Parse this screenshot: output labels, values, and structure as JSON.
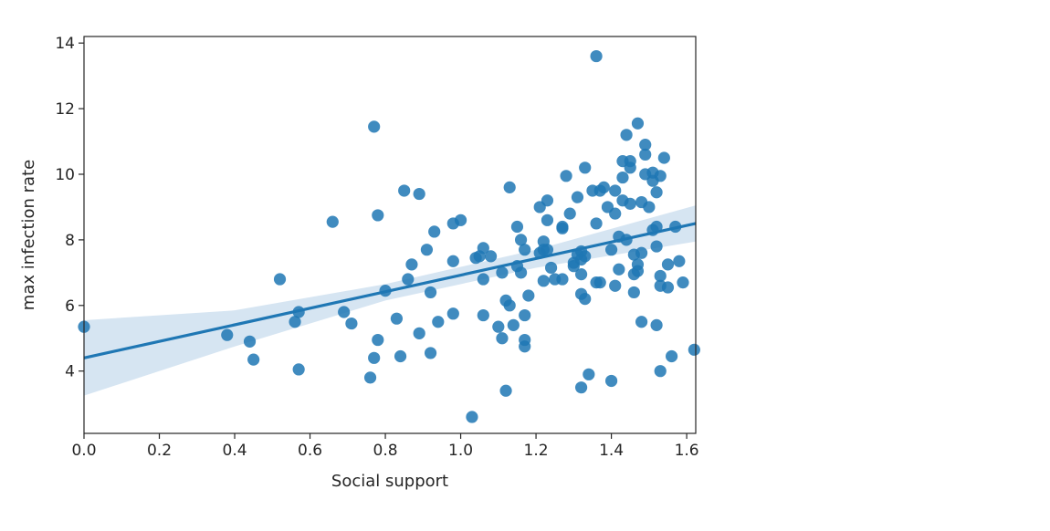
{
  "chart_data": {
    "type": "scatter",
    "xlabel": "Social support",
    "ylabel": "max infection rate",
    "xlim": [
      0.0,
      1.624
    ],
    "ylim": [
      2.1,
      14.2
    ],
    "xticks": [
      "0.0",
      "0.2",
      "0.4",
      "0.6",
      "0.8",
      "1.0",
      "1.2",
      "1.4",
      "1.6"
    ],
    "yticks": [
      "4",
      "6",
      "8",
      "10",
      "12",
      "14"
    ],
    "grid": false,
    "colors": {
      "points": "#1f77b4",
      "line": "#1f77b4",
      "band": "#cfe0f0"
    },
    "regression": {
      "x": [
        0.0,
        1.624
      ],
      "y": [
        4.4,
        8.5
      ]
    },
    "confidence_band": {
      "x": [
        0.0,
        0.4,
        0.8,
        1.2,
        1.624
      ],
      "lower": [
        3.25,
        4.75,
        6.15,
        7.15,
        7.95
      ],
      "upper": [
        5.55,
        5.85,
        6.65,
        7.7,
        9.05
      ]
    },
    "points": [
      [
        0.0,
        5.35
      ],
      [
        0.38,
        5.1
      ],
      [
        0.44,
        4.9
      ],
      [
        0.45,
        4.35
      ],
      [
        0.52,
        6.8
      ],
      [
        0.56,
        5.5
      ],
      [
        0.57,
        5.8
      ],
      [
        0.57,
        4.05
      ],
      [
        0.66,
        8.55
      ],
      [
        0.69,
        5.8
      ],
      [
        0.71,
        5.45
      ],
      [
        0.76,
        3.8
      ],
      [
        0.77,
        11.45
      ],
      [
        0.77,
        4.4
      ],
      [
        0.78,
        4.95
      ],
      [
        0.78,
        8.75
      ],
      [
        0.8,
        6.45
      ],
      [
        0.83,
        5.6
      ],
      [
        0.84,
        4.45
      ],
      [
        0.85,
        9.5
      ],
      [
        0.86,
        6.8
      ],
      [
        0.87,
        7.25
      ],
      [
        0.89,
        5.15
      ],
      [
        0.89,
        9.4
      ],
      [
        0.91,
        7.7
      ],
      [
        0.92,
        6.4
      ],
      [
        0.92,
        4.55
      ],
      [
        0.93,
        8.25
      ],
      [
        0.94,
        5.5
      ],
      [
        0.98,
        8.5
      ],
      [
        0.98,
        7.35
      ],
      [
        0.98,
        5.75
      ],
      [
        1.0,
        8.6
      ],
      [
        1.03,
        2.6
      ],
      [
        1.04,
        7.45
      ],
      [
        1.05,
        7.5
      ],
      [
        1.06,
        7.75
      ],
      [
        1.06,
        5.7
      ],
      [
        1.06,
        6.8
      ],
      [
        1.08,
        7.5
      ],
      [
        1.1,
        5.35
      ],
      [
        1.11,
        5.0
      ],
      [
        1.11,
        7.0
      ],
      [
        1.12,
        6.15
      ],
      [
        1.12,
        3.4
      ],
      [
        1.13,
        9.6
      ],
      [
        1.13,
        6.0
      ],
      [
        1.14,
        5.4
      ],
      [
        1.15,
        8.4
      ],
      [
        1.15,
        7.2
      ],
      [
        1.16,
        8.0
      ],
      [
        1.16,
        7.0
      ],
      [
        1.17,
        7.7
      ],
      [
        1.17,
        5.7
      ],
      [
        1.17,
        4.75
      ],
      [
        1.17,
        4.95
      ],
      [
        1.18,
        6.3
      ],
      [
        1.21,
        9.0
      ],
      [
        1.21,
        7.6
      ],
      [
        1.22,
        7.7
      ],
      [
        1.22,
        7.95
      ],
      [
        1.22,
        6.75
      ],
      [
        1.23,
        9.2
      ],
      [
        1.23,
        8.6
      ],
      [
        1.23,
        7.7
      ],
      [
        1.24,
        7.15
      ],
      [
        1.25,
        6.8
      ],
      [
        1.27,
        8.4
      ],
      [
        1.27,
        8.35
      ],
      [
        1.27,
        6.8
      ],
      [
        1.28,
        9.95
      ],
      [
        1.29,
        8.8
      ],
      [
        1.3,
        7.3
      ],
      [
        1.3,
        7.2
      ],
      [
        1.31,
        9.3
      ],
      [
        1.31,
        7.55
      ],
      [
        1.32,
        7.65
      ],
      [
        1.32,
        7.4
      ],
      [
        1.32,
        6.95
      ],
      [
        1.32,
        6.35
      ],
      [
        1.32,
        3.5
      ],
      [
        1.33,
        10.2
      ],
      [
        1.33,
        6.2
      ],
      [
        1.33,
        7.5
      ],
      [
        1.34,
        3.9
      ],
      [
        1.35,
        9.5
      ],
      [
        1.36,
        13.6
      ],
      [
        1.36,
        8.5
      ],
      [
        1.36,
        6.7
      ],
      [
        1.37,
        9.5
      ],
      [
        1.37,
        6.7
      ],
      [
        1.38,
        9.6
      ],
      [
        1.39,
        9.0
      ],
      [
        1.4,
        7.7
      ],
      [
        1.4,
        3.7
      ],
      [
        1.41,
        9.5
      ],
      [
        1.41,
        8.8
      ],
      [
        1.41,
        6.6
      ],
      [
        1.42,
        8.1
      ],
      [
        1.42,
        7.1
      ],
      [
        1.43,
        9.2
      ],
      [
        1.43,
        10.4
      ],
      [
        1.43,
        9.9
      ],
      [
        1.44,
        11.2
      ],
      [
        1.44,
        8.0
      ],
      [
        1.45,
        10.2
      ],
      [
        1.45,
        10.4
      ],
      [
        1.45,
        9.1
      ],
      [
        1.46,
        7.55
      ],
      [
        1.46,
        6.95
      ],
      [
        1.46,
        6.4
      ],
      [
        1.47,
        11.55
      ],
      [
        1.47,
        7.25
      ],
      [
        1.47,
        7.05
      ],
      [
        1.48,
        9.15
      ],
      [
        1.48,
        7.6
      ],
      [
        1.48,
        5.5
      ],
      [
        1.49,
        10.9
      ],
      [
        1.49,
        10.0
      ],
      [
        1.49,
        10.6
      ],
      [
        1.5,
        9.0
      ],
      [
        1.51,
        10.05
      ],
      [
        1.51,
        9.8
      ],
      [
        1.51,
        8.3
      ],
      [
        1.52,
        8.4
      ],
      [
        1.52,
        7.8
      ],
      [
        1.52,
        9.45
      ],
      [
        1.52,
        5.4
      ],
      [
        1.53,
        9.95
      ],
      [
        1.53,
        6.9
      ],
      [
        1.53,
        6.6
      ],
      [
        1.53,
        4.0
      ],
      [
        1.54,
        10.5
      ],
      [
        1.55,
        6.55
      ],
      [
        1.55,
        7.25
      ],
      [
        1.56,
        4.45
      ],
      [
        1.57,
        8.4
      ],
      [
        1.58,
        7.35
      ],
      [
        1.59,
        6.7
      ],
      [
        1.62,
        4.65
      ]
    ]
  }
}
